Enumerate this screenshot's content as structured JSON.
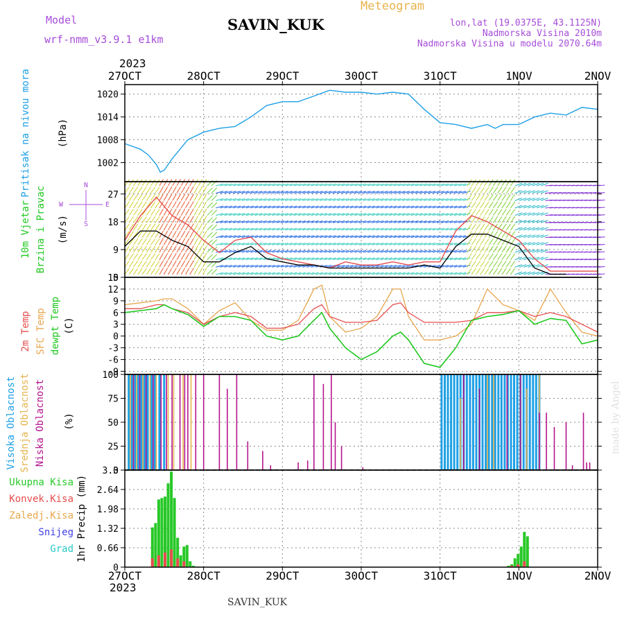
{
  "header": {
    "model_label": "Model",
    "model_name": "wrf-nmm_v3.9.1 e1km",
    "station": "SAVIN_KUK",
    "product": "Meteogram",
    "lonlat": "lon,lat (19.0375E, 43.1125N)",
    "elevation": "Nadmorska Visina 2010m",
    "model_elevation": "Nadmorska Visina u modelu 2070.64m"
  },
  "time_axis": {
    "year": "2023",
    "labels": [
      "27OCT",
      "28OCT",
      "29OCT",
      "30OCT",
      "31OCT",
      "1NOV",
      "2NOV"
    ]
  },
  "footer": {
    "station": "SAVIN_KUK",
    "credit": "made by Angel"
  },
  "colors": {
    "pressure": "#1ea0e6",
    "wind_speed": "#000000",
    "gust": "#e64d4d",
    "t2m": "#e64d4d",
    "sfc": "#e6a64d",
    "dewpt": "#1ec81e",
    "high_cloud": "#1ea0e6",
    "mid_cloud": "#e6b34d",
    "low_cloud": "#b4148c",
    "total_precip": "#28c828",
    "conv_precip": "#e64d4d",
    "frozen_precip": "#e6a64d"
  },
  "chart_data": [
    {
      "type": "line",
      "panel": "pressure",
      "ylabel": [
        "Pritisak na nivou mora",
        "(hPa)"
      ],
      "yticks": [
        1002,
        1008,
        1014,
        1020
      ],
      "ylim": [
        997,
        1022.5
      ],
      "grid": true,
      "series": [
        {
          "x": [
            0,
            0.2,
            0.3,
            0.4,
            0.45,
            0.5,
            0.6,
            0.8,
            1.0,
            1.2,
            1.4,
            1.6,
            1.8,
            2.0,
            2.2,
            2.4,
            2.6,
            2.8,
            3.0,
            3.2,
            3.4,
            3.6,
            3.8,
            4.0,
            4.2,
            4.4,
            4.6,
            4.7,
            4.8,
            5.0,
            5.2,
            5.4,
            5.6,
            5.8,
            6.0
          ],
          "values": [
            1007,
            1005.5,
            1004,
            1001.5,
            999.5,
            1000,
            1003,
            1008,
            1010,
            1011,
            1011.5,
            1014,
            1017,
            1018,
            1018,
            1019.5,
            1021,
            1020.5,
            1020.5,
            1020,
            1020.5,
            1020,
            1016,
            1012.5,
            1012,
            1011,
            1012,
            1011,
            1012,
            1012,
            1014,
            1015,
            1014.5,
            1016.5,
            1016
          ]
        }
      ]
    },
    {
      "type": "line",
      "panel": "wind",
      "ylabel": [
        "10m Vjetar",
        "Brzina i Pravac",
        "(m/s)"
      ],
      "legend_glyphs": [
        "N",
        "W",
        "E",
        "S"
      ],
      "yticks": [
        0,
        9,
        18,
        27
      ],
      "ylim": [
        0,
        31
      ],
      "grid": true,
      "series": [
        {
          "name": "wind speed",
          "x": [
            0,
            0.2,
            0.4,
            0.6,
            0.8,
            1.0,
            1.2,
            1.4,
            1.6,
            1.8,
            2.0,
            2.2,
            2.4,
            2.6,
            2.8,
            3.0,
            3.2,
            3.4,
            3.6,
            3.8,
            4.0,
            4.2,
            4.4,
            4.6,
            4.8,
            5.0,
            5.2,
            5.4,
            5.6
          ],
          "values": [
            10,
            15,
            15,
            12,
            10,
            5,
            5,
            8,
            10,
            6,
            5,
            4,
            4,
            3,
            3,
            3,
            3,
            3,
            3,
            4,
            3,
            10,
            14,
            14,
            12,
            10,
            3,
            1,
            1
          ]
        },
        {
          "name": "gust",
          "x": [
            0,
            0.2,
            0.4,
            0.6,
            0.8,
            1.0,
            1.2,
            1.4,
            1.6,
            1.8,
            2.0,
            2.2,
            2.4,
            2.6,
            2.8,
            3.0,
            3.2,
            3.4,
            3.6,
            3.8,
            4.0,
            4.2,
            4.4,
            4.6,
            4.8,
            5.0,
            5.2,
            5.4,
            5.6,
            5.8,
            6.0
          ],
          "values": [
            12,
            20,
            26,
            20,
            17,
            12,
            8,
            12,
            13,
            8,
            6,
            5,
            4,
            3,
            5,
            4,
            4,
            5,
            4,
            5,
            5,
            15,
            20,
            18,
            15,
            12,
            6,
            2,
            2,
            2,
            2
          ]
        }
      ]
    },
    {
      "type": "line",
      "panel": "temperature",
      "ylabel": [
        "2m Temp",
        "SFC Temp",
        "dewpt Temp",
        "(C)"
      ],
      "yticks": [
        -9,
        -6,
        -3,
        0,
        3,
        6,
        9,
        12,
        15
      ],
      "ylim": [
        -9.8,
        15
      ],
      "grid": true,
      "series": [
        {
          "name": "2m Temp",
          "x": [
            0,
            0.2,
            0.4,
            0.5,
            0.6,
            0.8,
            1.0,
            1.2,
            1.4,
            1.6,
            1.8,
            2.0,
            2.2,
            2.4,
            2.5,
            2.6,
            2.8,
            3.0,
            3.2,
            3.4,
            3.5,
            3.6,
            3.8,
            4.0,
            4.2,
            4.4,
            4.6,
            4.8,
            5.0,
            5.2,
            5.4,
            5.6,
            5.8,
            6.0
          ],
          "values": [
            7,
            7,
            8,
            8,
            7,
            6,
            3,
            5,
            6,
            5,
            2,
            2,
            3,
            7,
            8,
            5,
            3.5,
            3.5,
            4,
            8,
            8.5,
            6,
            3.5,
            3.5,
            3.5,
            4,
            6,
            6,
            6.5,
            5,
            6,
            5,
            3,
            1
          ]
        },
        {
          "name": "SFC Temp",
          "x": [
            0,
            0.2,
            0.4,
            0.5,
            0.6,
            0.8,
            1.0,
            1.2,
            1.4,
            1.6,
            1.8,
            2.0,
            2.2,
            2.4,
            2.5,
            2.6,
            2.8,
            3.0,
            3.2,
            3.4,
            3.5,
            3.6,
            3.8,
            4.0,
            4.2,
            4.4,
            4.6,
            4.8,
            5.0,
            5.2,
            5.4,
            5.6,
            5.8,
            6.0
          ],
          "values": [
            8,
            8.5,
            9,
            9.5,
            9.5,
            7,
            3,
            6.5,
            8.5,
            4,
            1.5,
            1.5,
            4,
            12,
            13,
            5,
            1,
            2,
            5,
            12,
            12,
            5,
            -1,
            -1,
            0,
            3,
            12,
            8,
            6.5,
            4,
            12,
            6,
            1,
            0
          ]
        },
        {
          "name": "dewpt Temp",
          "x": [
            0,
            0.2,
            0.4,
            0.5,
            0.6,
            0.8,
            1.0,
            1.2,
            1.4,
            1.6,
            1.8,
            2.0,
            2.2,
            2.4,
            2.5,
            2.6,
            2.8,
            3.0,
            3.2,
            3.4,
            3.5,
            3.6,
            3.8,
            4.0,
            4.2,
            4.4,
            4.6,
            4.8,
            5.0,
            5.2,
            5.4,
            5.6,
            5.8,
            6.0
          ],
          "values": [
            6,
            6.5,
            7,
            8,
            7,
            5.5,
            2.5,
            5,
            5,
            4,
            0,
            -1,
            0,
            4,
            6,
            2,
            -3,
            -6,
            -4,
            0,
            1,
            -1,
            -7,
            -8,
            -3,
            4,
            5,
            5.5,
            6.5,
            3,
            4.5,
            4,
            -2,
            -1
          ]
        }
      ]
    },
    {
      "type": "bar",
      "panel": "cloud",
      "ylabel": [
        "Visoka Oblacnost",
        "Srednja Oblacnost",
        "Niska Oblacnost",
        "(%)"
      ],
      "yticks": [
        0,
        25,
        50,
        75,
        100
      ],
      "ylim": [
        0,
        100
      ],
      "grid": true,
      "series": [
        {
          "name": "Visoka Oblacnost",
          "x": [
            0.05,
            0.09,
            0.13,
            0.17,
            0.21,
            0.25,
            0.29,
            0.34,
            0.38,
            0.44,
            0.5,
            4.02,
            4.06,
            4.1,
            4.14,
            4.18,
            4.22,
            4.26,
            4.3,
            4.34,
            4.38,
            4.42,
            4.46,
            4.5,
            4.54,
            4.58,
            4.62,
            4.66,
            4.7,
            4.74,
            4.78,
            4.82,
            4.86,
            4.9,
            4.94,
            4.98,
            5.02,
            5.06,
            5.1,
            5.14,
            5.18,
            5.22,
            5.26
          ],
          "values": [
            100,
            100,
            100,
            100,
            100,
            100,
            100,
            100,
            100,
            100,
            100,
            100,
            100,
            100,
            100,
            100,
            100,
            100,
            100,
            100,
            100,
            100,
            100,
            100,
            100,
            100,
            100,
            100,
            100,
            100,
            100,
            100,
            100,
            100,
            100,
            100,
            100,
            100,
            100,
            100,
            100,
            100,
            100
          ]
        },
        {
          "name": "Srednja Oblacnost",
          "x": [
            0.07,
            0.15,
            0.23,
            0.32,
            0.4,
            0.55,
            0.62,
            0.74,
            0.84,
            4.26,
            4.6,
            4.68,
            5.02,
            5.1,
            5.26
          ],
          "values": [
            100,
            100,
            100,
            100,
            100,
            100,
            100,
            100,
            100,
            75,
            100,
            100,
            100,
            85,
            100
          ]
        },
        {
          "name": "Niska Oblacnost",
          "x": [
            0.11,
            0.19,
            0.27,
            0.36,
            0.46,
            0.53,
            0.6,
            0.7,
            0.76,
            0.8,
            0.9,
            1.0,
            1.2,
            1.3,
            1.42,
            1.56,
            1.75,
            1.85,
            2.2,
            2.32,
            2.4,
            2.52,
            2.62,
            2.67,
            2.75,
            3.02,
            4.3,
            4.5,
            4.85,
            5.02,
            5.26,
            5.35,
            5.45,
            5.6,
            5.68,
            5.82,
            5.86,
            5.9
          ],
          "values": [
            100,
            100,
            100,
            100,
            100,
            100,
            100,
            100,
            100,
            100,
            100,
            100,
            100,
            85,
            100,
            30,
            20,
            5,
            8,
            10,
            100,
            90,
            100,
            50,
            25,
            3,
            100,
            85,
            100,
            100,
            60,
            60,
            45,
            50,
            5,
            60,
            8,
            8
          ]
        }
      ]
    },
    {
      "type": "bar",
      "panel": "precip",
      "ylabel": [
        "1hr Precip (mm)"
      ],
      "legend": [
        "Ukupna Kisa",
        "Konvek.Kisa",
        "Zaledj.Kisa",
        "Snijeg",
        "Grad"
      ],
      "yticks": [
        0,
        0.66,
        1.32,
        1.98,
        2.64,
        3.3
      ],
      "ylim": [
        0,
        3.3
      ],
      "grid": true,
      "series": [
        {
          "name": "Ukupna Kisa",
          "x": [
            0.35,
            0.39,
            0.43,
            0.47,
            0.51,
            0.55,
            0.59,
            0.63,
            0.67,
            0.71,
            0.75,
            0.79,
            0.83,
            0.87,
            0.92,
            4.87,
            4.91,
            4.95,
            4.99,
            5.03,
            5.07,
            5.11
          ],
          "values": [
            1.35,
            1.5,
            2.3,
            2.35,
            2.4,
            2.85,
            3.25,
            2.35,
            1.0,
            0.4,
            0.7,
            0.75,
            0.2,
            0.05,
            0.02,
            0.05,
            0.1,
            0.3,
            0.45,
            0.7,
            1.2,
            1.05
          ]
        },
        {
          "name": "Konvek.Kisa",
          "x": [
            0.35,
            0.43,
            0.51,
            0.59,
            0.67,
            0.75,
            4.91,
            4.99,
            5.07
          ],
          "values": [
            0.3,
            0.4,
            0.5,
            0.6,
            0.3,
            0.2,
            0.05,
            0.1,
            0.2
          ]
        }
      ]
    }
  ]
}
